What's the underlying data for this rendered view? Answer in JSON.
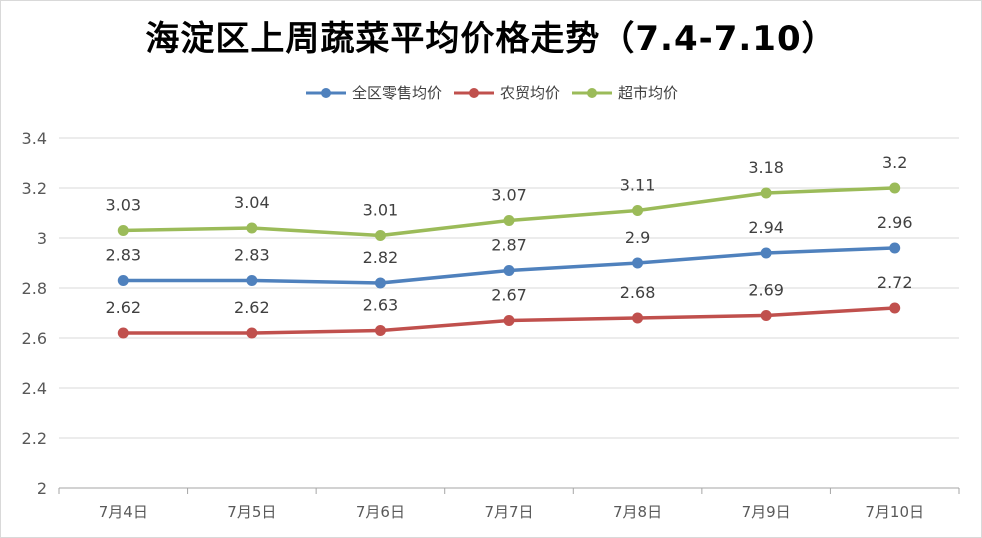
{
  "chart_data": {
    "type": "line",
    "title": "海淀区上周蔬菜平均价格走势（7.4-7.10）",
    "categories": [
      "7月4日",
      "7月5日",
      "7月6日",
      "7月7日",
      "7月8日",
      "7月9日",
      "7月10日"
    ],
    "series": [
      {
        "name": "全区零售均价",
        "color": "#4f81bd",
        "values": [
          2.83,
          2.83,
          2.82,
          2.87,
          2.9,
          2.94,
          2.96
        ]
      },
      {
        "name": "农贸均价",
        "color": "#c0504d",
        "values": [
          2.62,
          2.62,
          2.63,
          2.67,
          2.68,
          2.69,
          2.72
        ]
      },
      {
        "name": "超市均价",
        "color": "#9bbb59",
        "values": [
          3.03,
          3.04,
          3.01,
          3.07,
          3.11,
          3.18,
          3.2
        ]
      }
    ],
    "yticks": [
      "2",
      "2.2",
      "2.4",
      "2.6",
      "2.8",
      "3",
      "3.2",
      "3.4"
    ],
    "ylim": [
      2,
      3.4
    ],
    "grid": true,
    "legend": "top"
  }
}
